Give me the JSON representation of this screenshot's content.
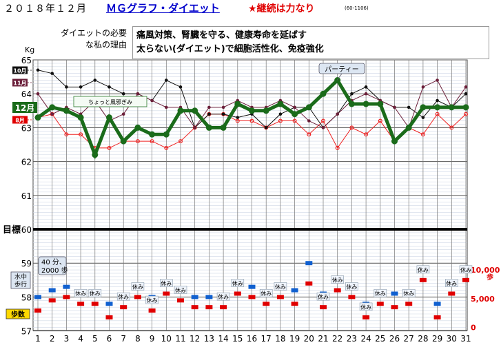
{
  "header": {
    "title": "２０１８年１２月",
    "app_link": "ＭＧグラフ・ダイエット",
    "motto": "★継続は力なり",
    "code": "(60-1106)"
  },
  "reason": {
    "label": "ダイエットの必要な私の理由",
    "line1": "痛風対策、腎臓を守る、健康寿命を延ばす",
    "line2": "太らない(ダイエット)で細胞活性化、免疫強化"
  },
  "chart_data": {
    "type": "line",
    "unit_left": "Kg",
    "goal_label": "目標",
    "goal_value": 60,
    "weight_axis": {
      "ticks": [
        65,
        64,
        63,
        62,
        61,
        60
      ]
    },
    "step_axis": {
      "ticks": [
        59,
        58,
        57
      ],
      "right_ticks": [
        "10,000",
        "5,000",
        "0"
      ],
      "right_unit": "歩"
    },
    "x": [
      1,
      2,
      3,
      4,
      5,
      6,
      7,
      8,
      9,
      10,
      11,
      12,
      13,
      14,
      15,
      16,
      17,
      18,
      19,
      20,
      21,
      22,
      23,
      24,
      25,
      26,
      27,
      28,
      29,
      30,
      31
    ],
    "series": [
      {
        "name": "12月",
        "color": "#1a6b1a",
        "values": [
          63.3,
          63.6,
          63.5,
          63.3,
          62.2,
          63.3,
          62.6,
          63.0,
          62.8,
          62.8,
          63.5,
          63.5,
          63.0,
          63.0,
          63.7,
          63.5,
          63.5,
          63.7,
          63.4,
          63.6,
          64.0,
          64.4,
          63.7,
          63.7,
          63.7,
          62.6,
          63.0,
          63.6,
          63.6,
          63.6,
          63.6
        ]
      },
      {
        "name": "11月",
        "color": "#6b1f3a",
        "values": [
          64.0,
          63.4,
          63.6,
          63.4,
          63.8,
          63.2,
          63.4,
          64.0,
          63.8,
          63.6,
          63.6,
          63.0,
          63.6,
          63.6,
          63.8,
          63.6,
          63.6,
          63.8,
          63.6,
          63.2,
          63.0,
          63.4,
          63.8,
          64.0,
          63.8,
          63.6,
          63.0,
          64.2,
          64.4,
          63.6,
          64.2
        ]
      },
      {
        "name": "10月",
        "color": "#111111",
        "values": [
          64.7,
          64.6,
          64.2,
          64.2,
          64.4,
          64.2,
          64.0,
          64.0,
          63.8,
          64.4,
          64.2,
          63.0,
          63.4,
          63.4,
          63.3,
          63.4,
          63.0,
          63.4,
          63.6,
          63.6,
          63.0,
          63.4,
          64.0,
          64.2,
          63.8,
          63.6,
          63.6,
          63.3,
          63.8,
          63.6,
          64.0
        ]
      },
      {
        "name": "8月",
        "color": "#ee2222",
        "values": [
          63.3,
          63.4,
          62.8,
          62.8,
          62.4,
          62.4,
          62.6,
          62.6,
          62.6,
          62.4,
          62.6,
          63.0,
          63.4,
          63.4,
          63.2,
          63.2,
          63.0,
          63.2,
          63.2,
          62.8,
          63.2,
          62.4,
          63.0,
          62.8,
          63.2,
          62.6,
          63.0,
          62.8,
          63.4,
          63.0,
          63.4
        ]
      }
    ],
    "steps_blue": [
      58.0,
      58.2,
      58.3,
      null,
      null,
      57.8,
      null,
      null,
      58.0,
      null,
      null,
      58.0,
      58.0,
      58.0,
      null,
      58.3,
      58.1,
      null,
      58.2,
      59.0,
      58.1,
      null,
      null,
      57.8,
      null,
      58.1,
      null,
      null,
      57.8,
      null,
      null
    ],
    "steps_red": [
      57.6,
      57.9,
      58.0,
      57.8,
      57.8,
      57.4,
      57.7,
      58.0,
      57.6,
      58.1,
      57.9,
      57.7,
      57.7,
      57.7,
      58.1,
      58.0,
      57.8,
      58.0,
      57.8,
      58.4,
      57.7,
      58.2,
      58.0,
      57.4,
      57.8,
      57.7,
      57.8,
      58.5,
      57.4,
      58.1,
      58.5
    ],
    "rest_days": [
      4,
      5,
      7,
      8,
      9,
      10,
      11,
      14,
      15,
      17,
      18,
      21,
      22,
      23,
      24,
      25,
      27,
      28,
      30,
      31
    ],
    "rest_label": "休み",
    "legend_months": [
      "10月",
      "11月",
      "12月",
      "8月"
    ],
    "annotations": {
      "party": "パーティー",
      "sick": "ちょっと風邪ぎみ",
      "swim_line1": "40 分、",
      "swim_line2": "2000 歩",
      "swim_side1": "水中",
      "swim_side2": "歩行",
      "steps_label": "歩数"
    }
  }
}
